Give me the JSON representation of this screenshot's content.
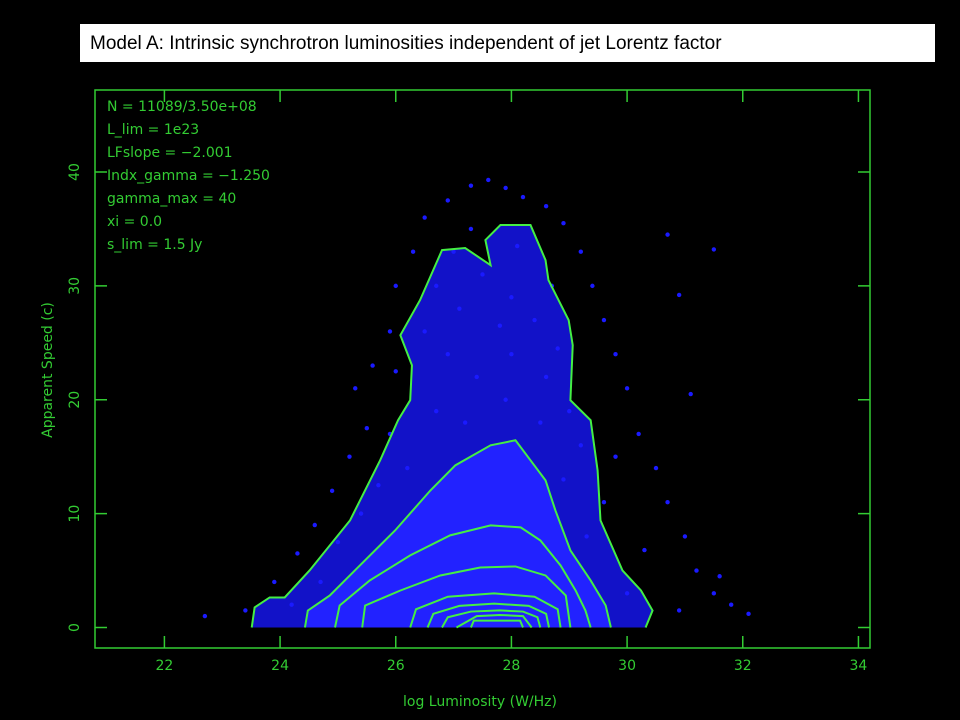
{
  "chart_data": {
    "type": "scatter",
    "title": "Model A: Intrinsic synchrotron luminosities independent of jet Lorentz factor",
    "x_label": "log Luminosity (W/Hz)",
    "y_label": "Apparent Speed (c)",
    "annotations": [
      "N = 11089/3.50e+08",
      "L_lim = 1e23",
      "LFslope = −2.001",
      "Indx_gamma = −1.250",
      "gamma_max = 40",
      "xi = 0.0",
      "s_lim = 1.5 Jy"
    ],
    "xlim": [
      20.8,
      34.2
    ],
    "ylim": [
      -1.8,
      47.2
    ],
    "xticks": [
      22,
      24,
      26,
      28,
      30,
      32,
      34
    ],
    "yticks": [
      0,
      10,
      20,
      30,
      40
    ],
    "grid": false,
    "axis_color": "#33cc33",
    "point_color": "#1a1aff",
    "contour_color": "#44ee44",
    "points": {
      "x": [
        22.7,
        23.4,
        23.9,
        24.3,
        24.6,
        24.9,
        25.2,
        25.5,
        25.3,
        25.6,
        25.9,
        26.0,
        26.3,
        26.5,
        26.9,
        27.3,
        27.6,
        27.9,
        28.2,
        28.6,
        28.9,
        29.2,
        29.4,
        29.6,
        29.8,
        30.0,
        30.2,
        30.5,
        30.7,
        31.0,
        31.2,
        31.5,
        31.8,
        32.1,
        30.9,
        31.5,
        30.7,
        31.1,
        30.9,
        31.6,
        26.7,
        27.1,
        27.5,
        28.0,
        28.4,
        26.9,
        27.4,
        28.0,
        28.6,
        26.7,
        27.2,
        27.9,
        28.5,
        29.2,
        25.9,
        26.2,
        28.9,
        25.4,
        29.3,
        24.7,
        30.0,
        27.0,
        28.1,
        27.8,
        26.5,
        28.8,
        29.0,
        25.7,
        29.6,
        24.2,
        30.3,
        29.8,
        25.0,
        26.0,
        27.3,
        28.7
      ],
      "y": [
        1.0,
        1.5,
        4.0,
        6.5,
        9,
        12,
        15,
        17.5,
        21,
        23,
        26,
        30,
        33,
        36,
        37.5,
        38.8,
        39.3,
        38.6,
        37.8,
        37,
        35.5,
        33,
        30,
        27,
        24,
        21,
        17,
        14,
        11,
        8,
        5,
        3,
        2.0,
        1.2,
        1.5,
        33.2,
        34.5,
        20.5,
        29.2,
        4.5,
        30,
        28,
        31,
        29,
        27,
        24,
        22,
        24,
        22,
        19,
        18,
        20,
        18,
        16,
        17,
        14,
        13,
        10,
        8,
        4,
        3,
        33,
        33.5,
        26.5,
        26,
        24.5,
        19,
        12.5,
        11,
        2,
        6.8,
        15,
        7.5,
        22.5,
        35,
        30
      ]
    },
    "contours": [
      {
        "x": [
          23.51,
          23.56,
          23.82,
          24.08,
          24.51,
          25.21,
          25.73,
          26.04,
          26.25,
          26.28,
          26.08,
          26.42,
          26.8,
          27.2,
          27.64,
          27.55,
          27.81,
          28.33,
          28.59,
          28.64,
          28.99,
          29.06,
          29.02,
          29.37,
          29.49,
          29.54,
          29.92,
          30.24,
          30.44,
          30.32
        ],
        "y": [
          0,
          1.76,
          2.64,
          2.64,
          5.01,
          9.41,
          14.68,
          18.2,
          19.96,
          23.03,
          25.67,
          28.75,
          33.14,
          33.32,
          31.82,
          34.02,
          35.34,
          35.34,
          32.26,
          30.51,
          26.99,
          24.79,
          19.96,
          18.2,
          13.8,
          9.41,
          5.01,
          3.25,
          1.49,
          0
        ]
      },
      {
        "x": [
          24.43,
          24.48,
          24.86,
          25.38,
          25.99,
          26.6,
          27.03,
          27.64,
          28.07,
          28.33,
          28.59,
          28.76,
          29.02,
          29.37,
          29.63,
          29.72
        ],
        "y": [
          0,
          1.49,
          2.81,
          5.45,
          8.53,
          12.04,
          14.24,
          16.0,
          16.44,
          14.68,
          12.92,
          10.29,
          6.77,
          4.13,
          1.93,
          0
        ]
      },
      {
        "x": [
          24.95,
          25.03,
          25.55,
          26.25,
          26.94,
          27.64,
          28.16,
          28.5,
          28.85,
          29.11,
          29.28,
          29.37
        ],
        "y": [
          0,
          1.93,
          4.13,
          6.33,
          8.09,
          8.97,
          8.79,
          7.65,
          5.45,
          3.25,
          1.49,
          0
        ]
      },
      {
        "x": [
          25.42,
          25.47,
          26.08,
          26.77,
          27.46,
          28.07,
          28.59,
          28.94,
          29.02
        ],
        "y": [
          0,
          1.93,
          3.25,
          4.57,
          5.27,
          5.36,
          4.57,
          2.81,
          0
        ]
      },
      {
        "x": [
          26.25,
          26.35,
          26.9,
          27.7,
          28.4,
          28.8,
          28.85
        ],
        "y": [
          0,
          1.6,
          2.7,
          3.0,
          2.7,
          1.6,
          0
        ]
      },
      {
        "x": [
          26.55,
          26.65,
          27.1,
          27.7,
          28.3,
          28.6,
          28.65
        ],
        "y": [
          0,
          1.2,
          1.9,
          2.1,
          1.9,
          1.2,
          0
        ]
      },
      {
        "x": [
          26.8,
          26.9,
          27.3,
          27.8,
          28.2,
          28.45,
          28.5
        ],
        "y": [
          0,
          0.9,
          1.4,
          1.5,
          1.4,
          0.9,
          0
        ]
      },
      {
        "x": [
          27.05,
          27.4,
          27.8,
          28.2,
          28.35
        ],
        "y": [
          0,
          1.0,
          1.1,
          1.0,
          0
        ]
      },
      {
        "x": [
          27.3,
          27.35,
          28.15,
          28.2
        ],
        "y": [
          0,
          0.6,
          0.6,
          0
        ]
      }
    ]
  }
}
